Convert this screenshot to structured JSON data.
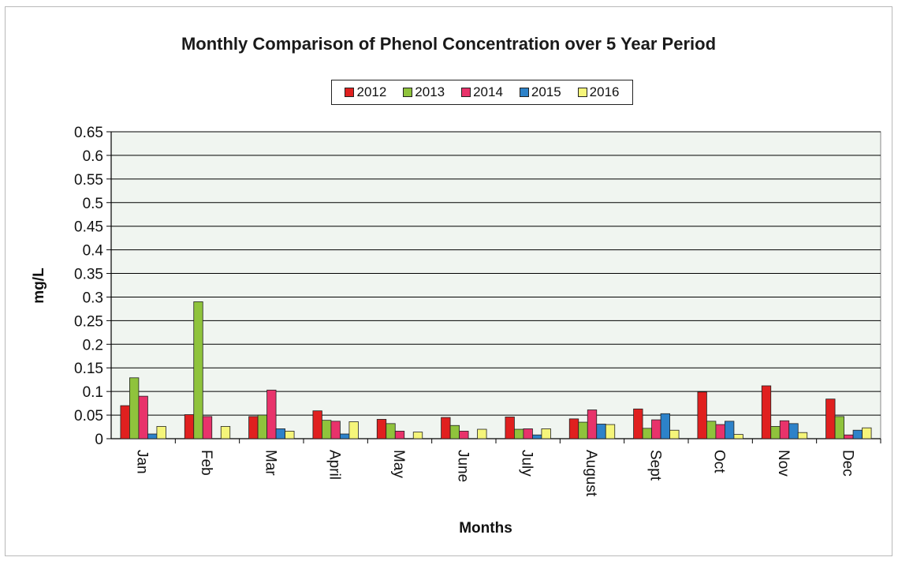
{
  "chart_data": {
    "type": "bar",
    "title": "Monthly Comparison of Phenol Concentration over 5 Year Period",
    "xlabel": "Months",
    "ylabel": "mg/L",
    "ylim": [
      0,
      0.65
    ],
    "yticks": [
      "0.65",
      "0.6",
      "0.55",
      "0.5",
      "0.45",
      "0.4",
      "0.35",
      "0.3",
      "0.25",
      "0.2",
      "0.15",
      "0.1",
      "0.05",
      "0"
    ],
    "grid": true,
    "legend_position": "top-center",
    "categories": [
      "Jan",
      "Feb",
      "Mar",
      "April",
      "May",
      "June",
      "July",
      "August",
      "Sept",
      "Oct",
      "Nov",
      "Dec"
    ],
    "series": [
      {
        "name": "2012",
        "color": "#e0201f",
        "values": [
          0.07,
          0.051,
          0.047,
          0.059,
          0.041,
          0.045,
          0.046,
          0.042,
          0.063,
          0.099,
          0.112,
          0.084
        ]
      },
      {
        "name": "2013",
        "color": "#8fc33c",
        "values": [
          0.129,
          0.29,
          0.05,
          0.039,
          0.032,
          0.028,
          0.02,
          0.035,
          0.022,
          0.037,
          0.026,
          0.047
        ]
      },
      {
        "name": "2014",
        "color": "#e8336b",
        "values": [
          0.09,
          0.047,
          0.103,
          0.037,
          0.016,
          0.016,
          0.021,
          0.061,
          0.04,
          0.03,
          0.038,
          0.008
        ]
      },
      {
        "name": "2015",
        "color": "#2d82c9",
        "values": [
          0.01,
          0,
          0.021,
          0.01,
          0.0,
          0.0,
          0.008,
          0.031,
          0.053,
          0.037,
          0.032,
          0.018
        ]
      },
      {
        "name": "2016",
        "color": "#f5f57a",
        "values": [
          0.026,
          0.026,
          0.016,
          0.036,
          0.014,
          0.02,
          0.021,
          0.03,
          0.018,
          0.009,
          0.013,
          0.023
        ]
      }
    ],
    "plot_background": "#f0f5f0"
  }
}
